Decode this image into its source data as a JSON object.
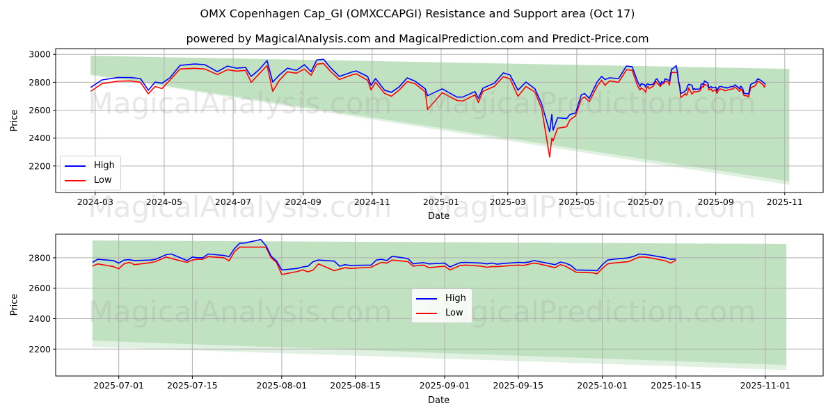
{
  "title": "OMX Copenhagen Cap_GI (OMXCCAPGI) Resistance and Support area (Oct 17)",
  "subtitle": "powered by MagicalAnalysis.com and MagicalPrediction.com and Predict-Price.com",
  "watermarks": [
    "MagicalAnalysis.com",
    "MagicalPrediction.com"
  ],
  "colors": {
    "high": "#0000ff",
    "low": "#ff0000",
    "band": "#a8d5a8",
    "band_light": "#cde8cd"
  },
  "chart_data": [
    {
      "type": "line",
      "name": "full-history",
      "xlabel": "Date",
      "ylabel": "Price",
      "xlim": [
        "2024-01-26",
        "2025-12-05"
      ],
      "ylim": [
        2010,
        3041
      ],
      "yticks": [
        2200,
        2400,
        2600,
        2800,
        3000
      ],
      "xticks": [
        "2024-03-01",
        "2024-05-01",
        "2024-07-01",
        "2024-09-01",
        "2024-11-01",
        "2025-01-01",
        "2025-03-01",
        "2025-05-01",
        "2025-07-01",
        "2025-09-01",
        "2025-11-01"
      ],
      "xtick_labels": [
        "2024-03",
        "2024-05",
        "2024-07",
        "2024-09",
        "2024-11",
        "2025-01",
        "2025-03",
        "2025-05",
        "2025-07",
        "2025-09",
        "2025-11"
      ],
      "start": "2024-01-01",
      "band": {
        "x": [
          "2024-02-26",
          "2025-11-05"
        ],
        "upper": [
          2990,
          2896
        ],
        "lower": [
          2857,
          2090
        ],
        "lower_light": [
          2850,
          2065
        ]
      },
      "legend": {
        "position": "lower-left",
        "entries": [
          "High",
          "Low"
        ]
      },
      "grid": true
    },
    {
      "type": "line",
      "name": "recent-zoom",
      "xlabel": "Date",
      "ylabel": "Price",
      "xlim": [
        "2025-06-19",
        "2025-11-12"
      ],
      "ylim": [
        2023,
        2955
      ],
      "yticks": [
        2200,
        2400,
        2600,
        2800
      ],
      "xticks": [
        "2025-07-01",
        "2025-07-15",
        "2025-08-01",
        "2025-08-15",
        "2025-09-01",
        "2025-09-15",
        "2025-10-01",
        "2025-10-15",
        "2025-11-01"
      ],
      "xtick_labels": [
        "2025-07-01",
        "2025-07-15",
        "2025-08-01",
        "2025-08-15",
        "2025-09-01",
        "2025-09-15",
        "2025-10-01",
        "2025-10-15",
        "2025-11-01"
      ],
      "start": "2025-06-26",
      "band": {
        "x": [
          "2025-06-26",
          "2025-11-05"
        ],
        "upper": [
          2914,
          2891
        ],
        "lower": [
          2255,
          2095
        ],
        "lower_light": [
          2214,
          2063
        ]
      },
      "legend": {
        "position": "center",
        "entries": [
          "High",
          "Low"
        ]
      },
      "grid": true
    }
  ],
  "series": {
    "dates": [
      "2024-02-26",
      "2024-03-07",
      "2024-03-21",
      "2024-04-01",
      "2024-04-10",
      "2024-04-17",
      "2024-04-23",
      "2024-04-29",
      "2024-05-06",
      "2024-05-15",
      "2024-05-28",
      "2024-06-06",
      "2024-06-17",
      "2024-06-26",
      "2024-07-04",
      "2024-07-12",
      "2024-07-17",
      "2024-07-24",
      "2024-07-31",
      "2024-08-05",
      "2024-08-11",
      "2024-08-18",
      "2024-08-26",
      "2024-09-02",
      "2024-09-08",
      "2024-09-13",
      "2024-09-19",
      "2024-09-25",
      "2024-10-03",
      "2024-10-15",
      "2024-10-18",
      "2024-10-28",
      "2024-10-31",
      "2024-11-04",
      "2024-11-12",
      "2024-11-18",
      "2024-11-25",
      "2024-12-02",
      "2024-12-09",
      "2024-12-18",
      "2024-12-20",
      "2025-01-02",
      "2025-01-15",
      "2025-01-20",
      "2025-01-31",
      "2025-02-03",
      "2025-02-07",
      "2025-02-17",
      "2025-02-25",
      "2025-03-03",
      "2025-03-10",
      "2025-03-17",
      "2025-03-25",
      "2025-03-31",
      "2025-04-07",
      "2025-04-09",
      "2025-04-10",
      "2025-04-14",
      "2025-04-22",
      "2025-04-25",
      "2025-04-30",
      "2025-05-05",
      "2025-05-08",
      "2025-05-12",
      "2025-05-19",
      "2025-05-23",
      "2025-05-26",
      "2025-05-30",
      "2025-06-07",
      "2025-06-14",
      "2025-06-19",
      "2025-06-24",
      "2025-06-26",
      "2025-06-27",
      "2025-06-30",
      "2025-07-01",
      "2025-07-02",
      "2025-07-03",
      "2025-07-04",
      "2025-07-07",
      "2025-07-08",
      "2025-07-09",
      "2025-07-10",
      "2025-07-11",
      "2025-07-14",
      "2025-07-15",
      "2025-07-16",
      "2025-07-17",
      "2025-07-18",
      "2025-07-21",
      "2025-07-22",
      "2025-07-23",
      "2025-07-24",
      "2025-07-25",
      "2025-07-28",
      "2025-07-29",
      "2025-07-30",
      "2025-07-31",
      "2025-08-01",
      "2025-08-04",
      "2025-08-05",
      "2025-08-06",
      "2025-08-07",
      "2025-08-08",
      "2025-08-11",
      "2025-08-12",
      "2025-08-13",
      "2025-08-14",
      "2025-08-18",
      "2025-08-19",
      "2025-08-20",
      "2025-08-21",
      "2025-08-22",
      "2025-08-25",
      "2025-08-26",
      "2025-08-27",
      "2025-08-28",
      "2025-08-29",
      "2025-09-01",
      "2025-09-02",
      "2025-09-03",
      "2025-09-04",
      "2025-09-05",
      "2025-09-08",
      "2025-09-09",
      "2025-09-10",
      "2025-09-11",
      "2025-09-12",
      "2025-09-15",
      "2025-09-16",
      "2025-09-17",
      "2025-09-18",
      "2025-09-19",
      "2025-09-22",
      "2025-09-23",
      "2025-09-24",
      "2025-09-25",
      "2025-09-26",
      "2025-09-29",
      "2025-09-30",
      "2025-10-01",
      "2025-10-02",
      "2025-10-03",
      "2025-10-06",
      "2025-10-07",
      "2025-10-08",
      "2025-10-09",
      "2025-10-10",
      "2025-10-13",
      "2025-10-14",
      "2025-10-15"
    ],
    "high": [
      2763,
      2817,
      2834,
      2834,
      2827,
      2743,
      2802,
      2793,
      2832,
      2921,
      2931,
      2926,
      2876,
      2916,
      2901,
      2906,
      2842,
      2891,
      2956,
      2802,
      2852,
      2901,
      2886,
      2926,
      2876,
      2960,
      2965,
      2906,
      2842,
      2876,
      2881,
      2842,
      2778,
      2827,
      2743,
      2728,
      2768,
      2832,
      2808,
      2753,
      2704,
      2753,
      2694,
      2694,
      2733,
      2684,
      2758,
      2793,
      2867,
      2852,
      2743,
      2802,
      2753,
      2644,
      2447,
      2570,
      2457,
      2546,
      2540,
      2570,
      2580,
      2710,
      2719,
      2685,
      2802,
      2842,
      2820,
      2832,
      2827,
      2916,
      2911,
      2802,
      2770,
      2790,
      2782,
      2765,
      2785,
      2788,
      2782,
      2785,
      2790,
      2805,
      2820,
      2825,
      2782,
      2805,
      2800,
      2800,
      2825,
      2815,
      2808,
      2860,
      2895,
      2897,
      2920,
      2880,
      2810,
      2780,
      2720,
      2730,
      2740,
      2745,
      2775,
      2785,
      2778,
      2745,
      2755,
      2750,
      2752,
      2785,
      2790,
      2782,
      2810,
      2795,
      2760,
      2765,
      2768,
      2760,
      2765,
      2740,
      2755,
      2768,
      2770,
      2765,
      2760,
      2765,
      2758,
      2762,
      2770,
      2768,
      2772,
      2782,
      2775,
      2755,
      2772,
      2765,
      2750,
      2720,
      2718,
      2715,
      2755,
      2785,
      2790,
      2800,
      2810,
      2825,
      2822,
      2818,
      2800,
      2790,
      2792
    ],
    "low": [
      2735,
      2790,
      2808,
      2810,
      2800,
      2718,
      2770,
      2755,
      2815,
      2895,
      2900,
      2895,
      2855,
      2890,
      2880,
      2885,
      2800,
      2860,
      2920,
      2735,
      2815,
      2875,
      2865,
      2895,
      2850,
      2930,
      2935,
      2880,
      2820,
      2855,
      2860,
      2815,
      2745,
      2800,
      2720,
      2700,
      2745,
      2805,
      2790,
      2730,
      2605,
      2725,
      2670,
      2665,
      2710,
      2655,
      2735,
      2770,
      2840,
      2825,
      2700,
      2770,
      2730,
      2610,
      2265,
      2400,
      2380,
      2470,
      2481,
      2530,
      2560,
      2680,
      2695,
      2660,
      2770,
      2815,
      2778,
      2810,
      2800,
      2890,
      2885,
      2770,
      2745,
      2760,
      2742,
      2728,
      2760,
      2770,
      2755,
      2768,
      2775,
      2790,
      2805,
      2795,
      2770,
      2785,
      2790,
      2790,
      2808,
      2800,
      2780,
      2840,
      2870,
      2870,
      2870,
      2870,
      2800,
      2770,
      2690,
      2710,
      2720,
      2708,
      2720,
      2760,
      2715,
      2725,
      2735,
      2730,
      2738,
      2755,
      2770,
      2765,
      2785,
      2775,
      2745,
      2750,
      2752,
      2735,
      2745,
      2720,
      2735,
      2750,
      2752,
      2745,
      2738,
      2742,
      2742,
      2745,
      2752,
      2750,
      2758,
      2765,
      2760,
      2735,
      2755,
      2745,
      2725,
      2705,
      2702,
      2695,
      2730,
      2760,
      2765,
      2775,
      2790,
      2805,
      2805,
      2800,
      2780,
      2765,
      2785
    ]
  }
}
